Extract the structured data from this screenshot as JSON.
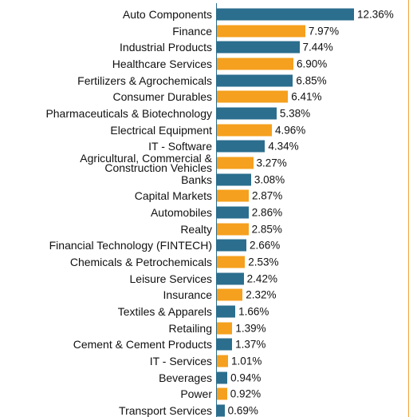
{
  "chart_data": {
    "type": "bar",
    "orientation": "horizontal",
    "categories": [
      "Auto Components",
      "Finance",
      "Industrial Products",
      "Healthcare Services",
      "Fertilizers & Agrochemicals",
      "Consumer Durables",
      "Pharmaceuticals & Biotechnology",
      "Electrical Equipment",
      "IT - Software",
      "Agricultural, Commercial &\nConstruction Vehicles",
      "Banks",
      "Capital Markets",
      "Automobiles",
      "Realty",
      "Financial Technology (FINTECH)",
      "Chemicals & Petrochemicals",
      "Leisure Services",
      "Insurance",
      "Textiles & Apparels",
      "Retailing",
      "Cement & Cement Products",
      "IT - Services",
      "Beverages",
      "Power",
      "Transport Services"
    ],
    "values": [
      12.36,
      7.97,
      7.44,
      6.9,
      6.85,
      6.41,
      5.38,
      4.96,
      4.34,
      3.27,
      3.08,
      2.87,
      2.86,
      2.85,
      2.66,
      2.53,
      2.42,
      2.32,
      1.66,
      1.39,
      1.37,
      1.01,
      0.94,
      0.92,
      0.69
    ],
    "value_labels": [
      "12.36%",
      "7.97%",
      "7.44%",
      "6.90%",
      "6.85%",
      "6.41%",
      "5.38%",
      "4.96%",
      "4.34%",
      "3.27%",
      "3.08%",
      "2.87%",
      "2.86%",
      "2.85%",
      "2.66%",
      "2.53%",
      "2.42%",
      "2.32%",
      "1.66%",
      "1.39%",
      "1.37%",
      "1.01%",
      "0.94%",
      "0.92%",
      "0.69%"
    ],
    "colors": [
      "#2b6e8e",
      "#f5a01e"
    ]
  }
}
